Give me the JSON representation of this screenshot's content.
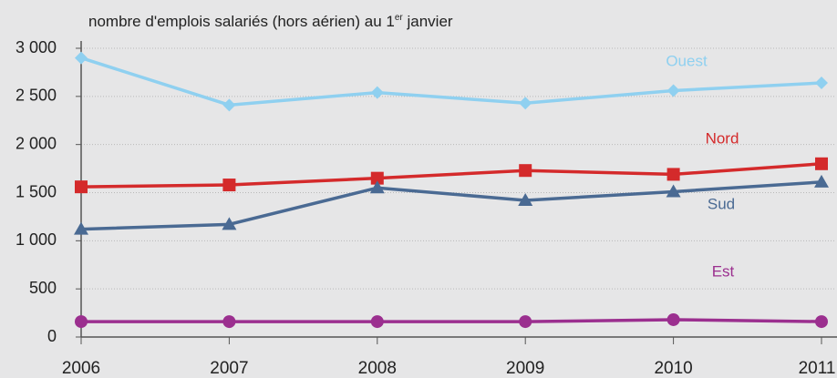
{
  "chart_data": {
    "type": "line",
    "title": [
      "nombre d'emplois salariés (hors aérien) au 1",
      "er",
      " janvier"
    ],
    "categories": [
      "2006",
      "2007",
      "2008",
      "2009",
      "2010",
      "2011"
    ],
    "series": [
      {
        "name": "Ouest",
        "color": "#8fd0f0",
        "marker": "diamond",
        "values": [
          2900,
          2410,
          2540,
          2430,
          2560,
          2640
        ]
      },
      {
        "name": "Nord",
        "color": "#d42a2b",
        "marker": "square",
        "values": [
          1560,
          1580,
          1650,
          1730,
          1690,
          1800
        ]
      },
      {
        "name": "Sud",
        "color": "#4a6a93",
        "marker": "triangle",
        "values": [
          1120,
          1170,
          1550,
          1420,
          1510,
          1610
        ]
      },
      {
        "name": "Est",
        "color": "#9b2f8f",
        "marker": "circle",
        "values": [
          160,
          160,
          160,
          160,
          180,
          160
        ]
      }
    ],
    "ylim": [
      0,
      3000
    ],
    "yticks": [
      0,
      500,
      {
        "value": 1000,
        "label": "1 000"
      },
      {
        "value": 1500,
        "label": "1 500"
      },
      {
        "value": 2000,
        "label": "2 000"
      },
      {
        "value": 2500,
        "label": "2 500"
      },
      {
        "value": 3000,
        "label": "3 000"
      }
    ],
    "grid": true
  }
}
